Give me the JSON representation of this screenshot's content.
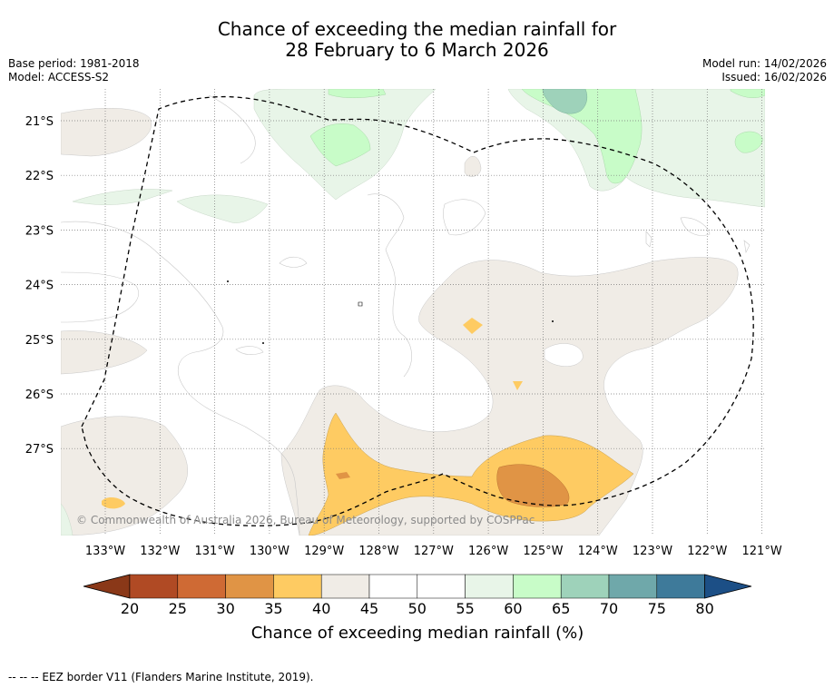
{
  "title": {
    "line1": "Chance of exceeding the median rainfall for",
    "line2": "28 February to 6 March 2026"
  },
  "meta": {
    "base_period": "Base period: 1981-2018",
    "model": "Model: ACCESS-S2",
    "model_run": "Model run: 14/02/2026",
    "issued": "Issued: 16/02/2026"
  },
  "map": {
    "lon_labels": [
      "133°W",
      "132°W",
      "131°W",
      "130°W",
      "129°W",
      "128°W",
      "127°W",
      "126°W",
      "125°W",
      "124°W",
      "123°W",
      "122°W",
      "121°W"
    ],
    "lat_labels": [
      "21°S",
      "22°S",
      "23°S",
      "24°S",
      "25°S",
      "26°S",
      "27°S"
    ],
    "copyright": "© Commonwealth of Australia 2026, Bureau of Meteorology, supported by COSPPac"
  },
  "colorbar": {
    "tick_labels": [
      "20",
      "25",
      "30",
      "35",
      "40",
      "45",
      "50",
      "55",
      "60",
      "65",
      "70",
      "75",
      "80"
    ],
    "label": "Chance of exceeding median rainfall (%)",
    "colors": {
      "below_20": "#8a3818",
      "20_25": "#b04a24",
      "25_30": "#cf6a34",
      "30_35": "#e09445",
      "35_40": "#fecb62",
      "40_45": "#f0ece6",
      "45_50": "#ffffff",
      "50_55": "#ffffff",
      "55_60": "#e8f5e8",
      "60_65": "#c8fcc8",
      "65_70": "#9ed2ba",
      "70_75": "#6fa8aa",
      "75_80": "#3e7a9a",
      "above_80": "#1c4f86"
    }
  },
  "footer": {
    "legend_text": "--  --  -- EEZ border V11 (Flanders Marine Institute, 2019)."
  }
}
